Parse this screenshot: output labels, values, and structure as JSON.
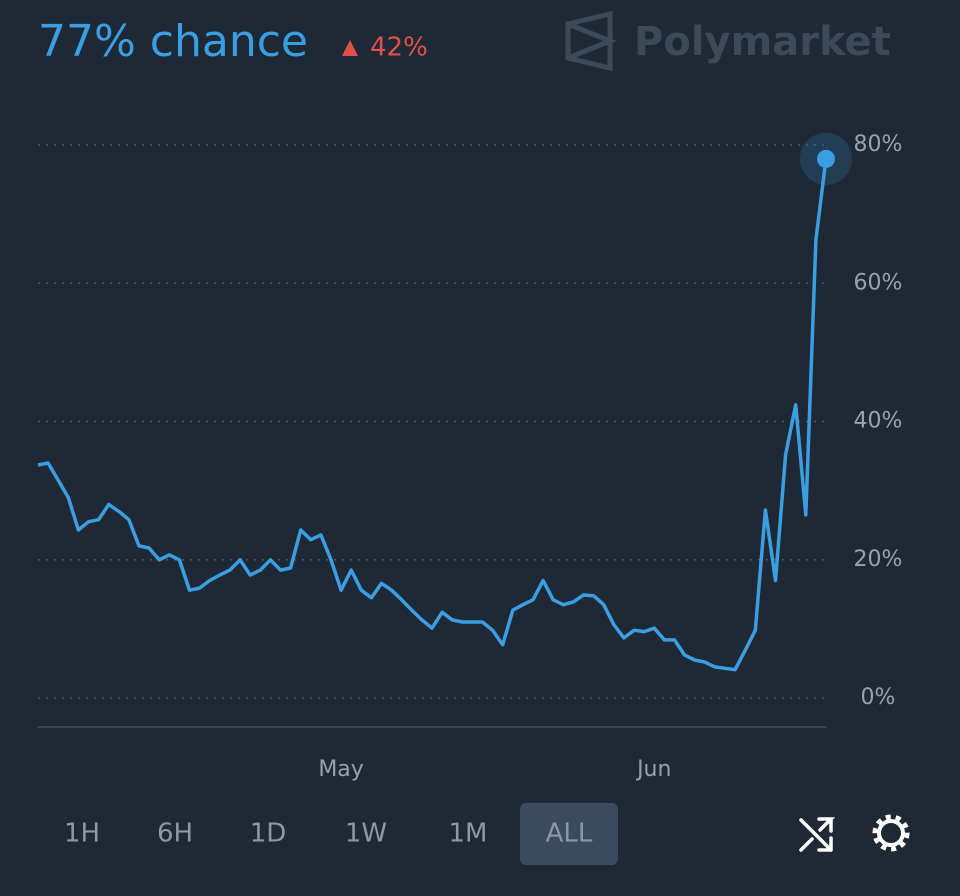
{
  "chart_data": {
    "type": "line",
    "title": "77% chance",
    "change": "42%",
    "brand": "Polymarket",
    "color": "#3a9fe2",
    "categories": [
      null,
      null,
      null,
      null,
      null,
      null,
      null,
      null,
      null,
      null,
      null,
      null,
      null,
      null,
      null,
      null,
      null,
      null,
      null,
      null,
      null,
      null,
      null,
      null,
      null,
      null,
      null,
      null,
      null,
      null,
      "May",
      null,
      null,
      null,
      null,
      null,
      null,
      null,
      null,
      null,
      null,
      null,
      null,
      null,
      null,
      null,
      null,
      null,
      null,
      null,
      null,
      null,
      null,
      null,
      null,
      null,
      null,
      null,
      null,
      null,
      null,
      "Jun",
      null,
      null,
      null,
      null,
      null,
      null,
      null,
      null,
      null,
      null,
      null,
      null,
      null,
      null,
      null,
      null,
      null
    ],
    "values": [
      33.7,
      34,
      31.5,
      29,
      24.3,
      25.5,
      25.8,
      28,
      27,
      25.8,
      22,
      21.7,
      20,
      20.7,
      20,
      15.6,
      15.9,
      17,
      17.8,
      18.5,
      20,
      17.8,
      18.5,
      20,
      18.5,
      18.8,
      24.3,
      22.9,
      23.6,
      20,
      15.6,
      18.5,
      15.6,
      14.5,
      16.6,
      15.6,
      14.2,
      12.7,
      11.3,
      10.1,
      12.4,
      11.3,
      11,
      11,
      11,
      9.8,
      7.7,
      12.7,
      13.5,
      14.2,
      17,
      14.2,
      13.5,
      13.9,
      14.9,
      14.8,
      13.5,
      10.6,
      8.7,
      9.8,
      9.6,
      10.1,
      8.4,
      8.4,
      6.2,
      5.5,
      5.2,
      4.5,
      4.3,
      4.1,
      6.9,
      9.8,
      27.2,
      17,
      35.2,
      42.4,
      26.5,
      66.3,
      78
    ],
    "ylim": [
      0,
      80
    ],
    "yticks": [
      {
        "value": 0,
        "label": "0%"
      },
      {
        "value": 20,
        "label": "20%"
      },
      {
        "value": 40,
        "label": "40%"
      },
      {
        "value": 60,
        "label": "60%"
      },
      {
        "value": 80,
        "label": "80%"
      }
    ],
    "grid": true,
    "ranges": [
      "1H",
      "6H",
      "1D",
      "1W",
      "1M",
      "ALL"
    ]
  }
}
